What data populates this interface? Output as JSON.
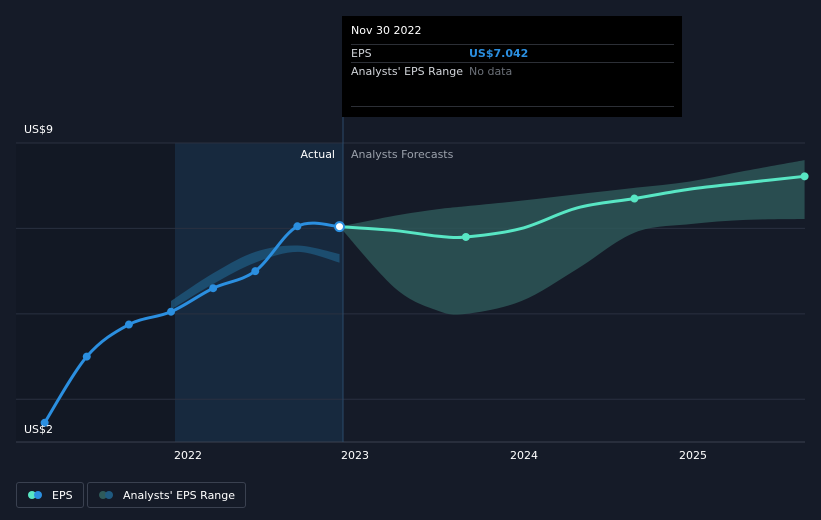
{
  "tooltip": {
    "date": "Nov 30 2022",
    "rows": [
      {
        "label": "EPS",
        "value": "US$7.042"
      },
      {
        "label": "Analysts' EPS Range",
        "value": "No data"
      }
    ]
  },
  "labels": {
    "actual": "Actual",
    "forecast": "Analysts Forecasts"
  },
  "legend": {
    "eps": "EPS",
    "range": "Analysts' EPS Range"
  },
  "colors": {
    "background": "#151b28",
    "eps_line": "#2b8fe0",
    "forecast_line": "#58e6c4",
    "range_fill": "#2e5a5a",
    "past_shade": "#1a3a5a"
  },
  "chart_data": {
    "type": "line",
    "title": "",
    "xlabel": "",
    "ylabel": "",
    "y_tick_labels": [
      "US$9",
      "US$2"
    ],
    "x_tick_labels": [
      "2022",
      "2023",
      "2024",
      "2025"
    ],
    "ylim": [
      2,
      9
    ],
    "xlim": [
      2021.0,
      2025.68
    ],
    "grid": true,
    "legend_position": "bottom-left",
    "series": [
      {
        "name": "EPS",
        "points": [
          {
            "x": 2021.17,
            "y": 2.45
          },
          {
            "x": 2021.42,
            "y": 4.0
          },
          {
            "x": 2021.67,
            "y": 4.75
          },
          {
            "x": 2021.92,
            "y": 5.05
          },
          {
            "x": 2022.17,
            "y": 5.6
          },
          {
            "x": 2022.42,
            "y": 6.0
          },
          {
            "x": 2022.67,
            "y": 7.05
          },
          {
            "x": 2022.92,
            "y": 7.042
          }
        ]
      },
      {
        "name": "Analysts Forecasts",
        "points": [
          {
            "x": 2022.92,
            "y": 7.042
          },
          {
            "x": 2023.25,
            "y": 6.95
          },
          {
            "x": 2023.5,
            "y": 6.82
          },
          {
            "x": 2023.67,
            "y": 6.8
          },
          {
            "x": 2024.0,
            "y": 7.0
          },
          {
            "x": 2024.33,
            "y": 7.48
          },
          {
            "x": 2024.67,
            "y": 7.7
          },
          {
            "x": 2025.0,
            "y": 7.92
          },
          {
            "x": 2025.33,
            "y": 8.07
          },
          {
            "x": 2025.68,
            "y": 8.22
          }
        ]
      }
    ],
    "range_band": {
      "x": [
        2022.92,
        2023.25,
        2023.5,
        2023.67,
        2024.0,
        2024.33,
        2024.67,
        2025.0,
        2025.33,
        2025.68
      ],
      "high": [
        7.042,
        7.3,
        7.45,
        7.52,
        7.65,
        7.8,
        7.95,
        8.1,
        8.35,
        8.6
      ],
      "low": [
        7.042,
        5.6,
        5.08,
        5.0,
        5.3,
        6.05,
        6.9,
        7.1,
        7.2,
        7.22
      ]
    },
    "past_range_band": {
      "x": [
        2021.92,
        2022.17,
        2022.42,
        2022.67,
        2022.92
      ],
      "high": [
        5.3,
        5.95,
        6.45,
        6.6,
        6.4
      ],
      "low": [
        5.1,
        5.7,
        6.2,
        6.45,
        6.2
      ]
    }
  }
}
